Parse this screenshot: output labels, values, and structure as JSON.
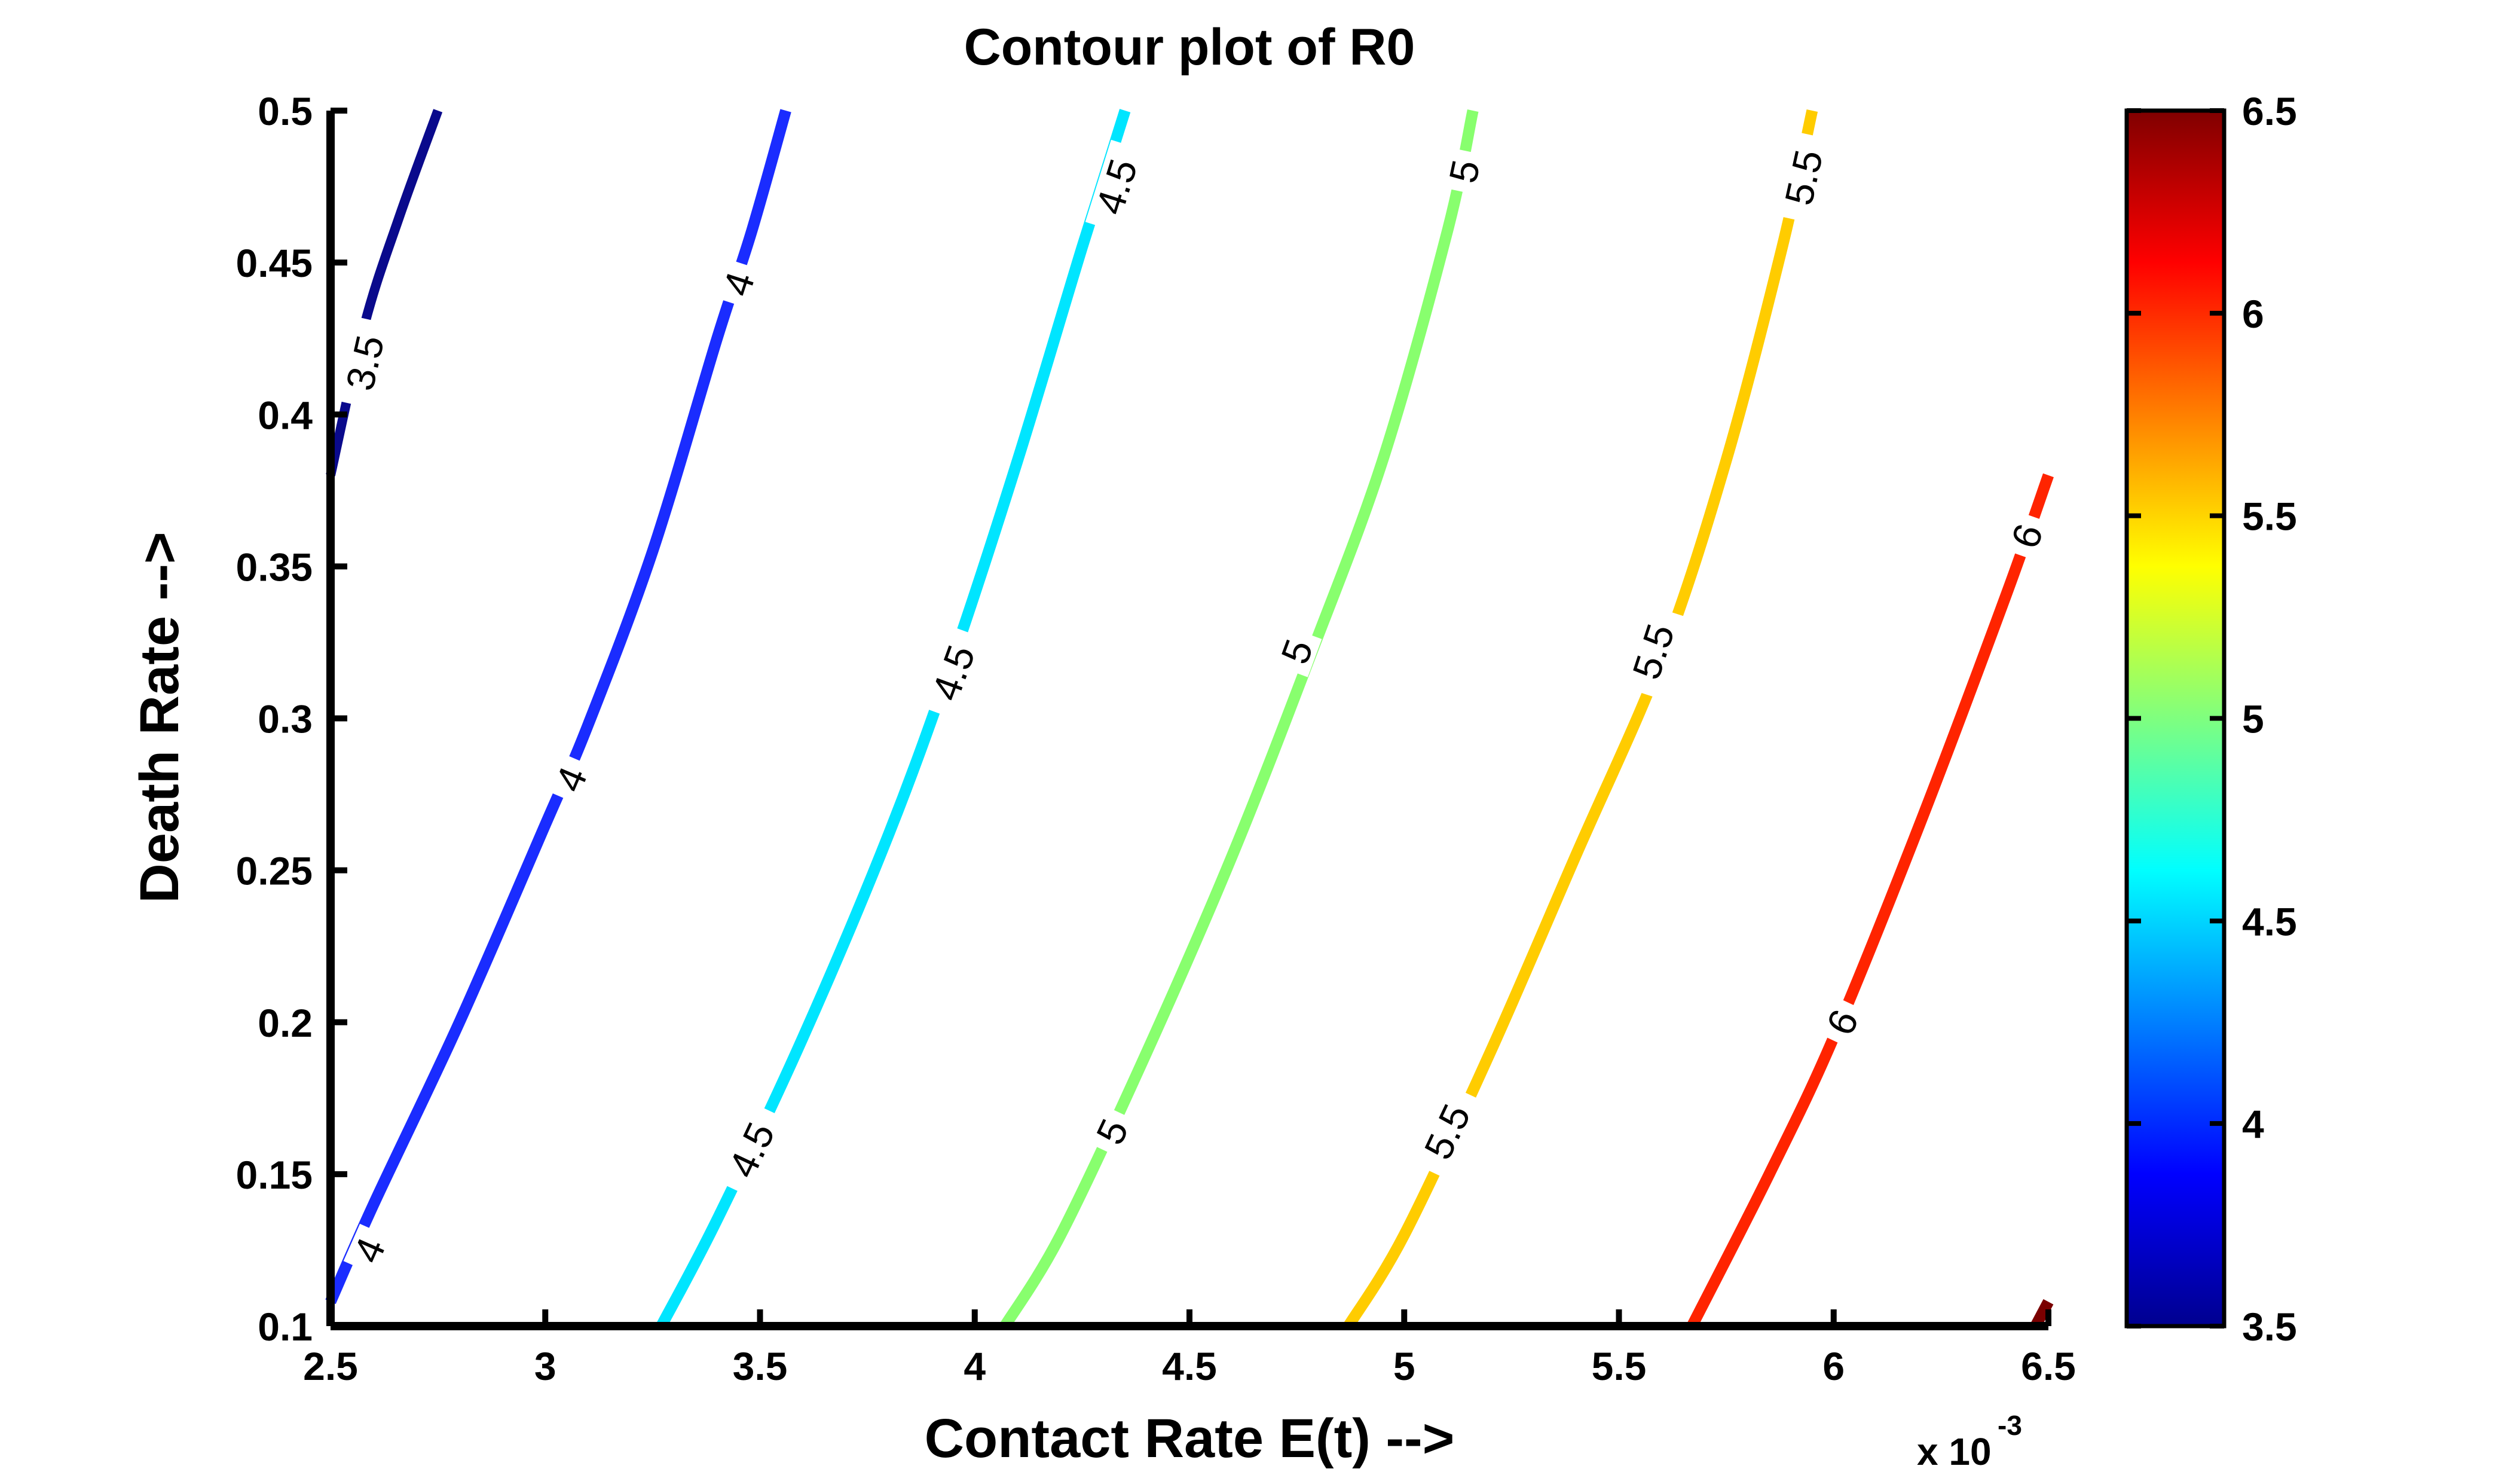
{
  "chart_data": {
    "type": "contour",
    "title": "Contour plot of R0",
    "xlabel": "Contact Rate E(t) -->",
    "ylabel": "Death Rate -->",
    "x_multiplier_prefix": "x 10",
    "x_multiplier_exponent": "-3",
    "xlim": [
      2.5,
      6.5
    ],
    "ylim": [
      0.1,
      0.5
    ],
    "x_ticks": [
      "2.5",
      "3",
      "3.5",
      "4",
      "4.5",
      "5",
      "5.5",
      "6",
      "6.5"
    ],
    "y_ticks": [
      "0.1",
      "0.15",
      "0.2",
      "0.25",
      "0.3",
      "0.35",
      "0.4",
      "0.45",
      "0.5"
    ],
    "colorbar": {
      "range": [
        3.5,
        6.5
      ],
      "ticks": [
        "3.5",
        "4",
        "4.5",
        "5",
        "5.5",
        "6",
        "6.5"
      ],
      "colormap": "jet"
    },
    "contours": [
      {
        "level": 3.5,
        "color": "#0a0a8c",
        "label": "3.5",
        "points": [
          [
            2.5,
            0.38
          ],
          [
            2.58,
            0.43
          ],
          [
            2.66,
            0.465
          ],
          [
            2.75,
            0.5
          ]
        ],
        "label_positions": [
          [
            2.58,
            0.417
          ]
        ]
      },
      {
        "level": 4,
        "color": "#1a2cff",
        "label": "4",
        "points": [
          [
            2.5,
            0.108
          ],
          [
            2.6,
            0.14
          ],
          [
            2.8,
            0.2
          ],
          [
            3.0,
            0.265
          ],
          [
            3.1,
            0.298
          ],
          [
            3.25,
            0.355
          ],
          [
            3.4,
            0.425
          ],
          [
            3.48,
            0.46
          ],
          [
            3.56,
            0.5
          ]
        ],
        "label_positions": [
          [
            2.59,
            0.125
          ],
          [
            3.06,
            0.28
          ],
          [
            3.45,
            0.443
          ]
        ]
      },
      {
        "level": 4.5,
        "color": "#00e5ff",
        "label": "4.5",
        "points": [
          [
            3.27,
            0.1
          ],
          [
            3.4,
            0.135
          ],
          [
            3.6,
            0.195
          ],
          [
            3.8,
            0.262
          ],
          [
            3.95,
            0.32
          ],
          [
            4.1,
            0.385
          ],
          [
            4.25,
            0.455
          ],
          [
            4.35,
            0.5
          ]
        ],
        "label_positions": [
          [
            3.48,
            0.158
          ],
          [
            3.95,
            0.315
          ],
          [
            4.33,
            0.475
          ]
        ]
      },
      {
        "level": 5,
        "color": "#88ff6e",
        "label": "5",
        "points": [
          [
            4.07,
            0.1
          ],
          [
            4.2,
            0.13
          ],
          [
            4.4,
            0.19
          ],
          [
            4.6,
            0.255
          ],
          [
            4.78,
            0.32
          ],
          [
            4.95,
            0.385
          ],
          [
            5.1,
            0.46
          ],
          [
            5.16,
            0.5
          ]
        ],
        "label_positions": [
          [
            4.32,
            0.164
          ],
          [
            4.75,
            0.322
          ],
          [
            5.14,
            0.48
          ]
        ]
      },
      {
        "level": 5.5,
        "color": "#ffcc00",
        "label": "5.5",
        "points": [
          [
            4.87,
            0.1
          ],
          [
            5.0,
            0.13
          ],
          [
            5.2,
            0.19
          ],
          [
            5.4,
            0.255
          ],
          [
            5.6,
            0.32
          ],
          [
            5.75,
            0.385
          ],
          [
            5.88,
            0.455
          ],
          [
            5.95,
            0.5
          ]
        ],
        "label_positions": [
          [
            5.1,
            0.164
          ],
          [
            5.58,
            0.322
          ],
          [
            5.93,
            0.478
          ]
        ]
      },
      {
        "level": 6,
        "color": "#ff2400",
        "label": "6",
        "points": [
          [
            5.67,
            0.1
          ],
          [
            5.85,
            0.15
          ],
          [
            6.0,
            0.195
          ],
          [
            6.2,
            0.265
          ],
          [
            6.4,
            0.34
          ],
          [
            6.5,
            0.38
          ]
        ],
        "label_positions": [
          [
            6.02,
            0.2
          ],
          [
            6.45,
            0.36
          ]
        ]
      },
      {
        "level": 6.5,
        "color": "#7a0000",
        "label": "",
        "points": [
          [
            6.47,
            0.1
          ],
          [
            6.5,
            0.108
          ]
        ],
        "label_positions": []
      }
    ],
    "grid": false,
    "legend": "colorbar right"
  }
}
